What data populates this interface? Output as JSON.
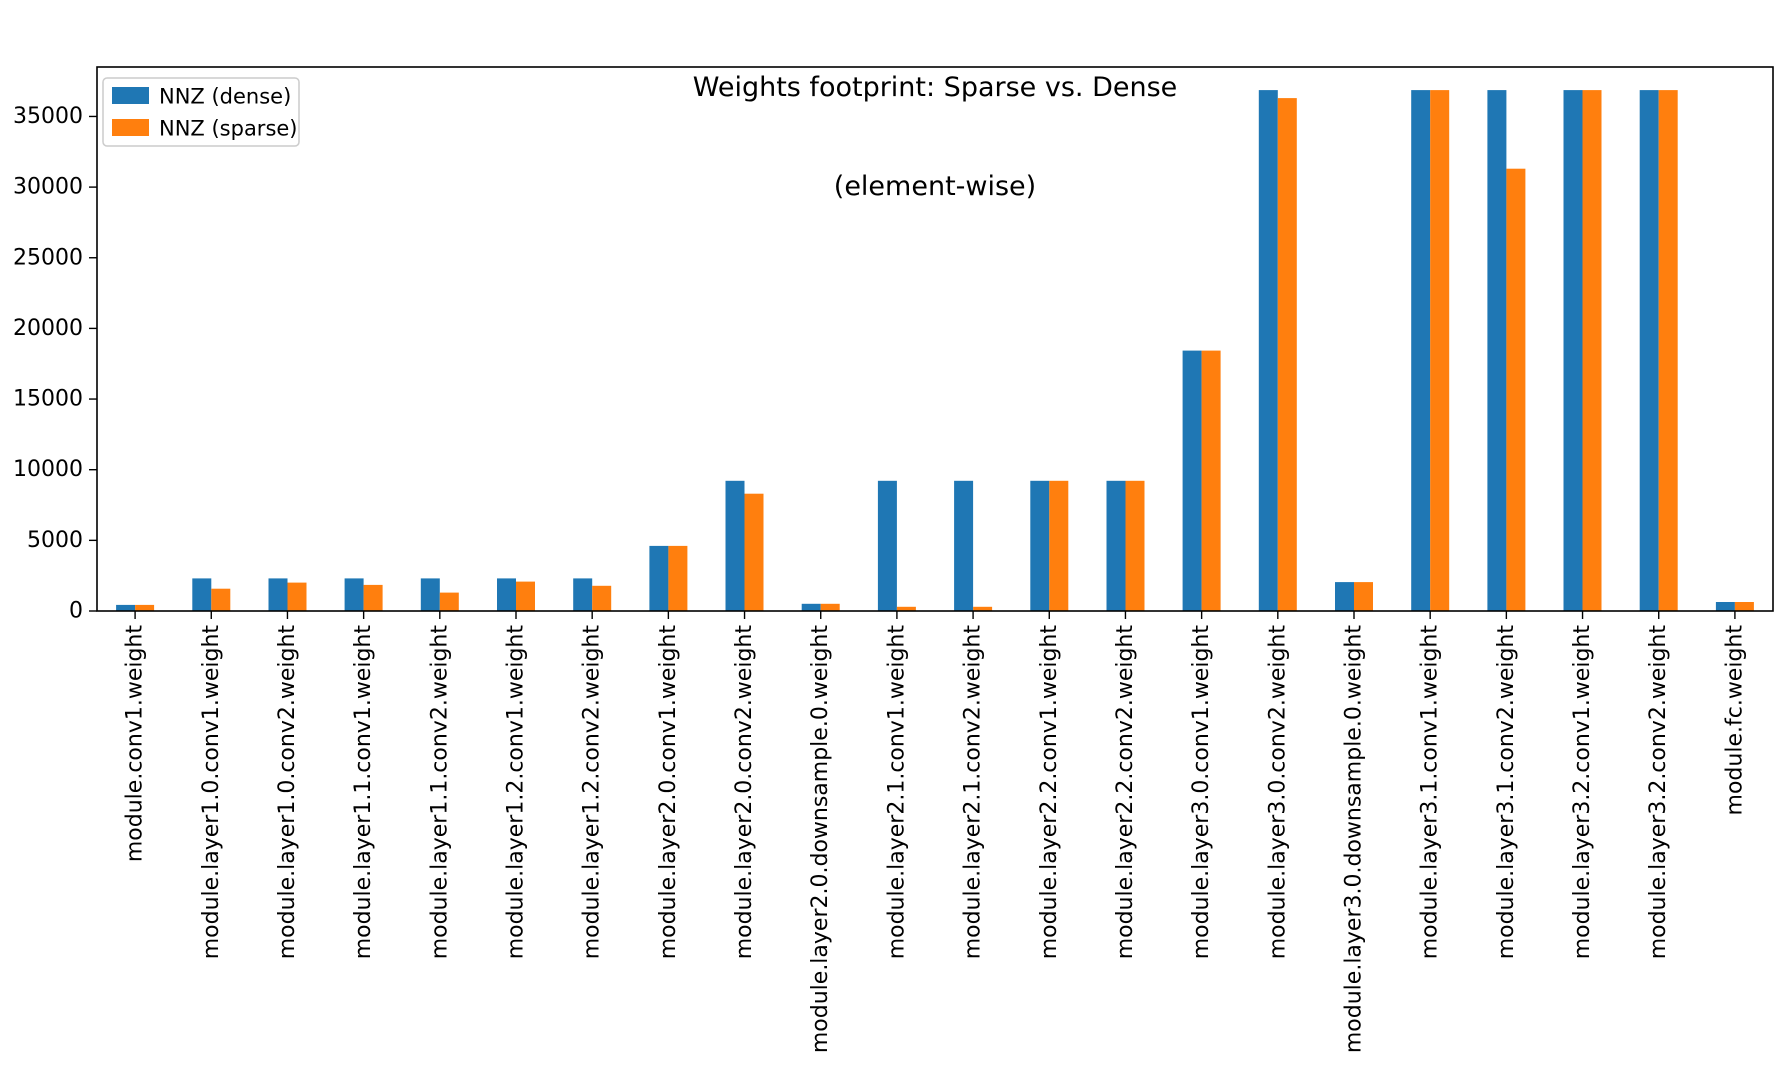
{
  "chart_data": {
    "type": "bar",
    "title": "Weights footprint: Sparse vs. Dense\n(element-wise)",
    "title_lines": [
      "Weights footprint: Sparse vs. Dense",
      "(element-wise)"
    ],
    "categories": [
      "module.conv1.weight",
      "module.layer1.0.conv1.weight",
      "module.layer1.0.conv2.weight",
      "module.layer1.1.conv1.weight",
      "module.layer1.1.conv2.weight",
      "module.layer1.2.conv1.weight",
      "module.layer1.2.conv2.weight",
      "module.layer2.0.conv1.weight",
      "module.layer2.0.conv2.weight",
      "module.layer2.0.downsample.0.weight",
      "module.layer2.1.conv1.weight",
      "module.layer2.1.conv2.weight",
      "module.layer2.2.conv1.weight",
      "module.layer2.2.conv2.weight",
      "module.layer3.0.conv1.weight",
      "module.layer3.0.conv2.weight",
      "module.layer3.0.downsample.0.weight",
      "module.layer3.1.conv1.weight",
      "module.layer3.1.conv2.weight",
      "module.layer3.2.conv1.weight",
      "module.layer3.2.conv2.weight",
      "module.fc.weight"
    ],
    "series": [
      {
        "name": "NNZ (dense)",
        "color": "#1f77b4",
        "values": [
          432,
          2304,
          2304,
          2304,
          2304,
          2304,
          2304,
          4608,
          9216,
          512,
          9216,
          9216,
          9216,
          9216,
          18432,
          36864,
          2048,
          36864,
          36864,
          36864,
          36864,
          640
        ]
      },
      {
        "name": "NNZ (sparse)",
        "color": "#ff7f0e",
        "values": [
          430,
          1580,
          2010,
          1850,
          1300,
          2080,
          1780,
          4608,
          8300,
          510,
          300,
          300,
          9216,
          9216,
          18432,
          36300,
          2048,
          36864,
          31300,
          36864,
          36864,
          640
        ]
      }
    ],
    "xlabel": "",
    "ylabel": "",
    "ylim": [
      0,
      38500
    ],
    "yticks": [
      0,
      5000,
      10000,
      15000,
      20000,
      25000,
      30000,
      35000
    ],
    "legend_position": "upper left",
    "grid": false,
    "bar_orientation": "vertical",
    "x_tick_rotation_deg": 90
  }
}
